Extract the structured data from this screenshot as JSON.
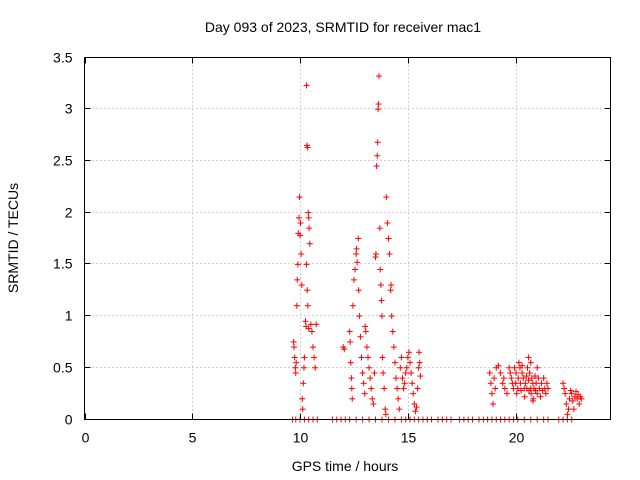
{
  "chart_data": {
    "type": "scatter",
    "title": "Day 093 of 2023, SRMTID for receiver mac1",
    "xlabel": "GPS time / hours",
    "ylabel": "SRMTID / TECUs",
    "xlim": [
      0,
      24.4
    ],
    "ylim": [
      0,
      3.5
    ],
    "x_ticks": [
      "0",
      "5",
      "10",
      "15",
      "20"
    ],
    "x_tick_values": [
      0,
      5,
      10,
      15,
      20
    ],
    "y_ticks": [
      "0",
      "0.5",
      "1",
      "1.5",
      "2",
      "2.5",
      "3",
      "3.5"
    ],
    "y_tick_values": [
      0,
      0.5,
      1,
      1.5,
      2,
      2.5,
      3,
      3.5
    ],
    "grid": true,
    "marker": "+",
    "color": "#ff0000",
    "series": [
      {
        "name": "SRMTID",
        "points": [
          [
            9.7,
            0.75
          ],
          [
            9.72,
            0.7
          ],
          [
            9.75,
            0.6
          ],
          [
            9.78,
            0.5
          ],
          [
            9.8,
            0.45
          ],
          [
            9.82,
            0.55
          ],
          [
            9.85,
            1.1
          ],
          [
            9.87,
            1.35
          ],
          [
            9.9,
            1.5
          ],
          [
            9.92,
            1.8
          ],
          [
            9.95,
            1.95
          ],
          [
            9.97,
            2.15
          ],
          [
            10.0,
            1.78
          ],
          [
            10.02,
            1.9
          ],
          [
            10.05,
            1.6
          ],
          [
            10.08,
            1.3
          ],
          [
            10.1,
            0.2
          ],
          [
            10.12,
            0.1
          ],
          [
            10.15,
            0.35
          ],
          [
            10.18,
            0.5
          ],
          [
            10.3,
            3.23
          ],
          [
            10.32,
            2.65
          ],
          [
            10.35,
            2.63
          ],
          [
            10.38,
            2.0
          ],
          [
            10.4,
            1.95
          ],
          [
            10.42,
            1.85
          ],
          [
            10.45,
            1.7
          ],
          [
            10.3,
            1.5
          ],
          [
            10.33,
            1.25
          ],
          [
            10.36,
            1.1
          ],
          [
            10.25,
            0.95
          ],
          [
            10.28,
            0.9
          ],
          [
            10.4,
            0.88
          ],
          [
            10.5,
            0.92
          ],
          [
            10.55,
            0.85
          ],
          [
            10.6,
            0.7
          ],
          [
            10.65,
            0.6
          ],
          [
            10.7,
            0.5
          ],
          [
            10.75,
            0.92
          ],
          [
            10.2,
            0.6
          ],
          [
            12.0,
            0.7
          ],
          [
            12.05,
            0.68
          ],
          [
            12.3,
            0.85
          ],
          [
            12.32,
            0.75
          ],
          [
            12.35,
            0.55
          ],
          [
            12.38,
            0.4
          ],
          [
            12.4,
            0.3
          ],
          [
            12.42,
            0.2
          ],
          [
            12.45,
            1.1
          ],
          [
            12.5,
            1.35
          ],
          [
            12.55,
            1.45
          ],
          [
            12.6,
            1.6
          ],
          [
            12.62,
            1.65
          ],
          [
            12.65,
            1.52
          ],
          [
            12.7,
            1.75
          ],
          [
            12.72,
            1.25
          ],
          [
            12.75,
            1.0
          ],
          [
            12.8,
            0.8
          ],
          [
            12.85,
            0.6
          ],
          [
            12.9,
            0.45
          ],
          [
            12.95,
            0.35
          ],
          [
            13.0,
            0.25
          ],
          [
            13.02,
            0.9
          ],
          [
            13.05,
            0.85
          ],
          [
            13.1,
            0.7
          ],
          [
            13.15,
            0.6
          ],
          [
            13.2,
            0.5
          ],
          [
            13.25,
            0.4
          ],
          [
            13.3,
            0.3
          ],
          [
            13.35,
            0.2
          ],
          [
            13.4,
            0.15
          ],
          [
            13.45,
            0.45
          ],
          [
            13.5,
            1.57
          ],
          [
            13.52,
            1.6
          ],
          [
            13.55,
            2.45
          ],
          [
            13.58,
            2.55
          ],
          [
            13.6,
            2.68
          ],
          [
            13.62,
            3.0
          ],
          [
            13.64,
            3.05
          ],
          [
            13.66,
            3.32
          ],
          [
            13.7,
            1.85
          ],
          [
            13.72,
            1.45
          ],
          [
            13.75,
            1.3
          ],
          [
            13.78,
            1.15
          ],
          [
            13.8,
            1.0
          ],
          [
            13.82,
            0.6
          ],
          [
            13.85,
            0.45
          ],
          [
            13.9,
            0.3
          ],
          [
            13.95,
            0.1
          ],
          [
            13.98,
            0.05
          ],
          [
            14.0,
            2.15
          ],
          [
            14.05,
            1.9
          ],
          [
            14.1,
            1.75
          ],
          [
            14.15,
            1.6
          ],
          [
            14.2,
            1.25
          ],
          [
            14.22,
            1.3
          ],
          [
            14.25,
            1.0
          ],
          [
            14.3,
            0.85
          ],
          [
            14.35,
            0.7
          ],
          [
            14.4,
            0.55
          ],
          [
            14.45,
            0.4
          ],
          [
            14.5,
            0.3
          ],
          [
            14.55,
            0.2
          ],
          [
            14.6,
            0.1
          ],
          [
            14.65,
            0.5
          ],
          [
            14.7,
            0.6
          ],
          [
            14.75,
            0.4
          ],
          [
            14.8,
            0.3
          ],
          [
            14.85,
            0.35
          ],
          [
            14.9,
            0.45
          ],
          [
            14.95,
            0.5
          ],
          [
            15.0,
            0.6
          ],
          [
            15.05,
            0.65
          ],
          [
            15.1,
            0.55
          ],
          [
            15.15,
            0.45
          ],
          [
            15.2,
            0.35
          ],
          [
            15.25,
            0.25
          ],
          [
            15.3,
            0.15
          ],
          [
            15.35,
            0.08
          ],
          [
            15.4,
            0.12
          ],
          [
            15.45,
            0.3
          ],
          [
            15.5,
            0.5
          ],
          [
            15.52,
            0.65
          ],
          [
            15.55,
            0.55
          ],
          [
            15.58,
            0.42
          ],
          [
            18.8,
            0.45
          ],
          [
            18.85,
            0.35
          ],
          [
            18.9,
            0.25
          ],
          [
            18.95,
            0.15
          ],
          [
            19.0,
            0.4
          ],
          [
            19.05,
            0.3
          ],
          [
            19.1,
            0.5
          ],
          [
            19.2,
            0.52
          ],
          [
            19.3,
            0.45
          ],
          [
            19.4,
            0.35
          ],
          [
            19.45,
            0.4
          ],
          [
            19.5,
            0.3
          ],
          [
            19.6,
            0.25
          ],
          [
            19.7,
            0.5
          ],
          [
            19.75,
            0.45
          ],
          [
            19.8,
            0.4
          ],
          [
            19.85,
            0.35
          ],
          [
            19.9,
            0.3
          ],
          [
            19.95,
            0.5
          ],
          [
            20.0,
            0.35
          ],
          [
            20.02,
            0.45
          ],
          [
            20.05,
            0.25
          ],
          [
            20.1,
            0.3
          ],
          [
            20.12,
            0.4
          ],
          [
            20.15,
            0.55
          ],
          [
            20.2,
            0.5
          ],
          [
            20.22,
            0.35
          ],
          [
            20.25,
            0.28
          ],
          [
            20.3,
            0.45
          ],
          [
            20.35,
            0.4
          ],
          [
            20.4,
            0.3
          ],
          [
            20.42,
            0.22
          ],
          [
            20.45,
            0.35
          ],
          [
            20.5,
            0.42
          ],
          [
            20.52,
            0.3
          ],
          [
            20.55,
            0.5
          ],
          [
            20.6,
            0.38
          ],
          [
            20.62,
            0.28
          ],
          [
            20.65,
            0.45
          ],
          [
            20.7,
            0.3
          ],
          [
            20.72,
            0.25
          ],
          [
            20.75,
            0.4
          ],
          [
            20.8,
            0.35
          ],
          [
            20.82,
            0.2
          ],
          [
            20.85,
            0.3
          ],
          [
            20.9,
            0.42
          ],
          [
            20.92,
            0.28
          ],
          [
            20.95,
            0.35
          ],
          [
            21.0,
            0.25
          ],
          [
            21.05,
            0.4
          ],
          [
            21.1,
            0.3
          ],
          [
            21.15,
            0.22
          ],
          [
            21.2,
            0.35
          ],
          [
            21.25,
            0.28
          ],
          [
            21.3,
            0.4
          ],
          [
            21.35,
            0.3
          ],
          [
            21.4,
            0.25
          ],
          [
            21.45,
            0.35
          ],
          [
            21.5,
            0.3
          ],
          [
            20.6,
            0.6
          ],
          [
            20.7,
            0.55
          ],
          [
            21.0,
            0.5
          ],
          [
            20.3,
            0.52
          ],
          [
            20.8,
            0.18
          ],
          [
            22.2,
            0.35
          ],
          [
            22.25,
            0.3
          ],
          [
            22.3,
            0.25
          ],
          [
            22.35,
            0.15
          ],
          [
            22.4,
            0.05
          ],
          [
            22.45,
            0.1
          ],
          [
            22.5,
            0.2
          ],
          [
            22.55,
            0.28
          ],
          [
            22.6,
            0.25
          ],
          [
            22.65,
            0.18
          ],
          [
            22.7,
            0.1
          ],
          [
            22.75,
            0.22
          ],
          [
            22.8,
            0.27
          ],
          [
            22.85,
            0.2
          ],
          [
            22.9,
            0.24
          ],
          [
            22.95,
            0.15
          ],
          [
            23.0,
            0.22
          ],
          [
            23.05,
            0.2
          ],
          [
            9.65,
            0
          ],
          [
            9.8,
            0
          ],
          [
            10.0,
            0
          ],
          [
            10.2,
            0
          ],
          [
            10.4,
            0
          ],
          [
            10.6,
            0
          ],
          [
            10.8,
            0
          ],
          [
            11.5,
            0
          ],
          [
            11.7,
            0
          ],
          [
            11.9,
            0
          ],
          [
            12.1,
            0
          ],
          [
            12.3,
            0
          ],
          [
            12.6,
            0
          ],
          [
            12.9,
            0
          ],
          [
            13.2,
            0
          ],
          [
            13.5,
            0
          ],
          [
            13.8,
            0
          ],
          [
            14.1,
            0
          ],
          [
            14.4,
            0
          ],
          [
            14.7,
            0
          ],
          [
            14.9,
            0
          ],
          [
            15.1,
            0
          ],
          [
            15.3,
            0
          ],
          [
            15.5,
            0
          ],
          [
            15.7,
            0
          ],
          [
            15.9,
            0
          ],
          [
            16.1,
            0
          ],
          [
            16.4,
            0
          ],
          [
            16.6,
            0
          ],
          [
            16.8,
            0
          ],
          [
            17.0,
            0
          ],
          [
            17.4,
            0
          ],
          [
            17.6,
            0
          ],
          [
            17.8,
            0
          ],
          [
            18.0,
            0
          ],
          [
            18.3,
            0
          ],
          [
            18.5,
            0
          ],
          [
            18.7,
            0
          ],
          [
            18.9,
            0
          ],
          [
            19.1,
            0
          ],
          [
            19.3,
            0
          ],
          [
            19.5,
            0
          ],
          [
            19.7,
            0
          ],
          [
            19.9,
            0
          ],
          [
            20.1,
            0
          ],
          [
            20.4,
            0
          ],
          [
            20.7,
            0
          ],
          [
            21.0,
            0
          ],
          [
            21.3,
            0
          ],
          [
            21.5,
            0
          ],
          [
            22.0,
            0
          ],
          [
            22.2,
            0
          ],
          [
            22.4,
            0
          ],
          [
            22.6,
            0
          ]
        ]
      }
    ]
  }
}
